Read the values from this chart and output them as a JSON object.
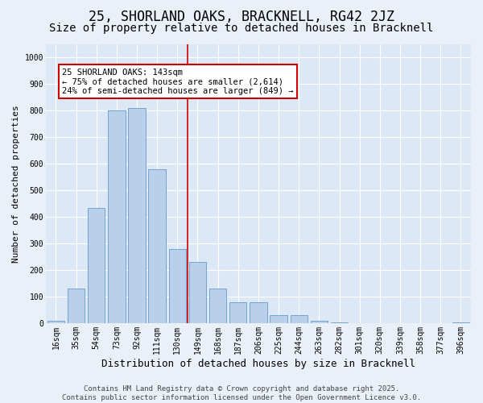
{
  "title": "25, SHORLAND OAKS, BRACKNELL, RG42 2JZ",
  "subtitle": "Size of property relative to detached houses in Bracknell",
  "xlabel": "Distribution of detached houses by size in Bracknell",
  "ylabel": "Number of detached properties",
  "categories": [
    "16sqm",
    "35sqm",
    "54sqm",
    "73sqm",
    "92sqm",
    "111sqm",
    "130sqm",
    "149sqm",
    "168sqm",
    "187sqm",
    "206sqm",
    "225sqm",
    "244sqm",
    "263sqm",
    "282sqm",
    "301sqm",
    "320sqm",
    "339sqm",
    "358sqm",
    "377sqm",
    "396sqm"
  ],
  "values": [
    10,
    130,
    435,
    800,
    810,
    580,
    280,
    230,
    130,
    80,
    80,
    30,
    30,
    8,
    3,
    1,
    0,
    0,
    0,
    0,
    2
  ],
  "bar_color": "#b8d0ea",
  "bar_edge_color": "#6699cc",
  "vline_color": "#cc0000",
  "vline_x_idx": 6.5,
  "annotation_text": "25 SHORLAND OAKS: 143sqm\n← 75% of detached houses are smaller (2,614)\n24% of semi-detached houses are larger (849) →",
  "annotation_box_facecolor": "#ffffff",
  "annotation_box_edgecolor": "#cc0000",
  "ylim": [
    0,
    1050
  ],
  "yticks": [
    0,
    100,
    200,
    300,
    400,
    500,
    600,
    700,
    800,
    900,
    1000
  ],
  "plot_bg_color": "#dce8f5",
  "fig_bg_color": "#eaf0f8",
  "title_fontsize": 12,
  "subtitle_fontsize": 10,
  "tick_fontsize": 7,
  "xlabel_fontsize": 9,
  "ylabel_fontsize": 8,
  "annot_fontsize": 7.5,
  "footer_fontsize": 6.5,
  "footer": "Contains HM Land Registry data © Crown copyright and database right 2025.\nContains public sector information licensed under the Open Government Licence v3.0."
}
